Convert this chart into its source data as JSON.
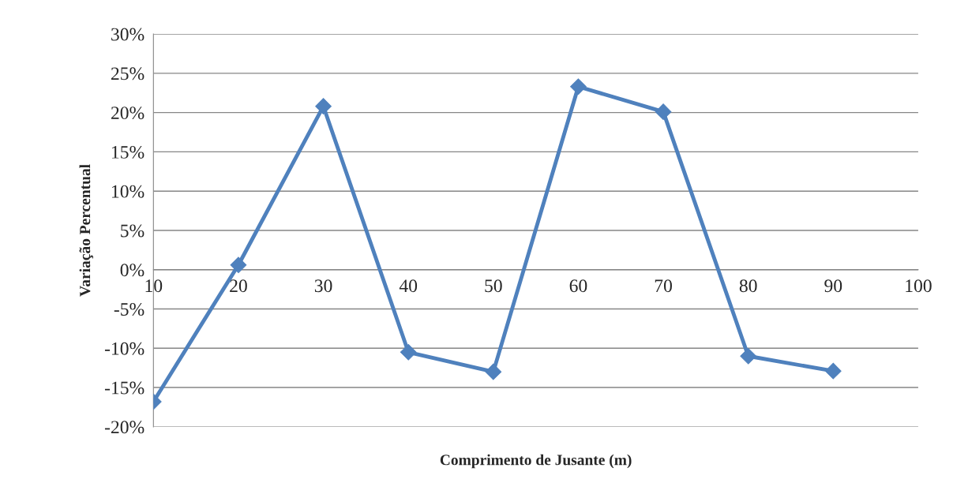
{
  "chart_data": {
    "type": "line",
    "xlabel": "Comprimento de Jusante (m)",
    "ylabel": "Variação Percentual",
    "x": [
      10,
      20,
      30,
      40,
      50,
      60,
      70,
      80,
      90
    ],
    "series": [
      {
        "color": "#4f81bd",
        "values": [
          -16.8,
          0.6,
          20.8,
          -10.5,
          -13.0,
          23.3,
          20.1,
          -11.0,
          -12.9
        ]
      }
    ],
    "xlim": [
      10,
      100
    ],
    "xticks": [
      10,
      20,
      30,
      40,
      50,
      60,
      70,
      80,
      90,
      100
    ],
    "ylim": [
      -20,
      30
    ],
    "yticks": [
      {
        "value": -20,
        "label": "-20%"
      },
      {
        "value": -15,
        "label": "-15%"
      },
      {
        "value": -10,
        "label": "-10%"
      },
      {
        "value": -5,
        "label": "-5%"
      },
      {
        "value": 0,
        "label": "0%"
      },
      {
        "value": 5,
        "label": "5%"
      },
      {
        "value": 10,
        "label": "10%"
      },
      {
        "value": 15,
        "label": "15%"
      },
      {
        "value": 20,
        "label": "20%"
      },
      {
        "value": 25,
        "label": "25%"
      },
      {
        "value": 30,
        "label": "30%"
      }
    ],
    "grid": "y",
    "marker": "diamond",
    "line_style": "solid"
  }
}
